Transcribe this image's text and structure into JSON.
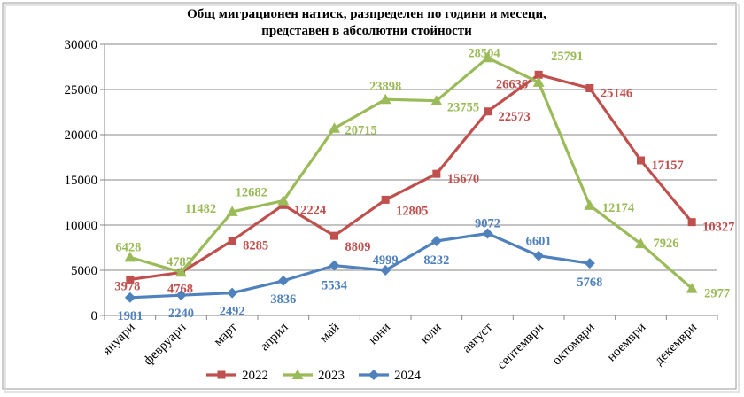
{
  "chart_data": {
    "type": "line",
    "title_lines": [
      "Общ миграционен натиск, разпределен по години и  месеци,",
      "представен в абсолютни стойности"
    ],
    "categories": [
      "януари",
      "февруари",
      "март",
      "април",
      "май",
      "юни",
      "юли",
      "август",
      "септември",
      "октомври",
      "ноември",
      "декември"
    ],
    "ylim": [
      0,
      30000
    ],
    "yticks": [
      0,
      5000,
      10000,
      15000,
      20000,
      25000,
      30000
    ],
    "grid": true,
    "legend_position": "bottom",
    "series": [
      {
        "name": "2022",
        "color": "#C0504D",
        "marker": "square",
        "values": [
          3978,
          4768,
          8285,
          12224,
          8809,
          12805,
          15670,
          22573,
          26636,
          25146,
          17157,
          10327
        ]
      },
      {
        "name": "2023",
        "color": "#9BBB59",
        "marker": "triangle",
        "values": [
          6428,
          4785,
          11482,
          12682,
          20715,
          23898,
          23755,
          28504,
          25791,
          12174,
          7926,
          2977
        ]
      },
      {
        "name": "2024",
        "color": "#4F81BD",
        "marker": "diamond",
        "values": [
          1981,
          2240,
          2492,
          3836,
          5534,
          4999,
          8232,
          9072,
          6601,
          5768,
          null,
          null
        ]
      }
    ]
  }
}
